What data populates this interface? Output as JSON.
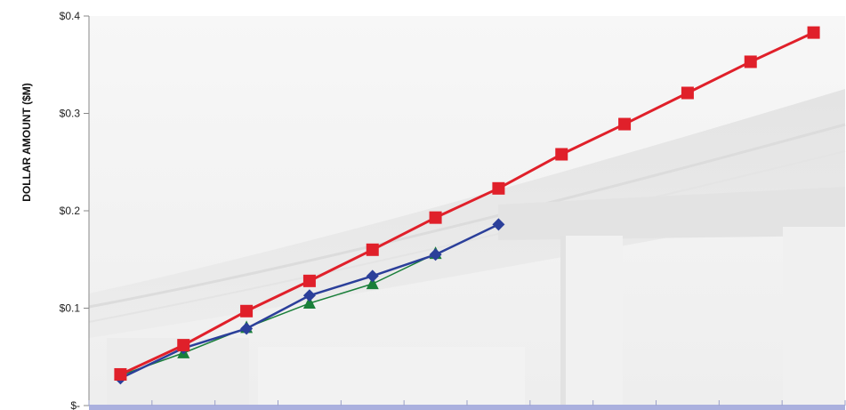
{
  "chart_data": {
    "type": "line",
    "title": "",
    "xlabel": "",
    "ylabel": "DOLLAR AMOUNT ($M)",
    "ylim": [
      0,
      0.4
    ],
    "y_ticks": [
      {
        "value": 0,
        "label": "$-"
      },
      {
        "value": 0.1,
        "label": "$0.1"
      },
      {
        "value": 0.2,
        "label": "$0.2"
      },
      {
        "value": 0.3,
        "label": "$0.3"
      },
      {
        "value": 0.4,
        "label": "$0.4"
      }
    ],
    "x": [
      1,
      2,
      3,
      4,
      5,
      6,
      7,
      8,
      9,
      10,
      11,
      12
    ],
    "grid": false,
    "legend": "none",
    "background": "faded highway overpass photograph",
    "series": [
      {
        "color": "#e0202a",
        "marker": "square",
        "values": [
          0.032,
          0.062,
          0.097,
          0.128,
          0.16,
          0.193,
          0.223,
          0.258,
          0.289,
          0.321,
          0.353,
          0.383
        ]
      },
      {
        "color": "#2b3f9a",
        "marker": "diamond",
        "values": [
          0.028,
          0.059,
          0.079,
          0.113,
          0.133,
          0.155,
          0.186,
          null,
          null,
          null,
          null,
          null
        ]
      },
      {
        "color": "#1a7f3a",
        "marker": "triangle",
        "values": [
          0.031,
          0.054,
          0.08,
          0.105,
          0.125,
          0.156,
          null,
          null,
          null,
          null,
          null,
          null
        ]
      }
    ]
  }
}
